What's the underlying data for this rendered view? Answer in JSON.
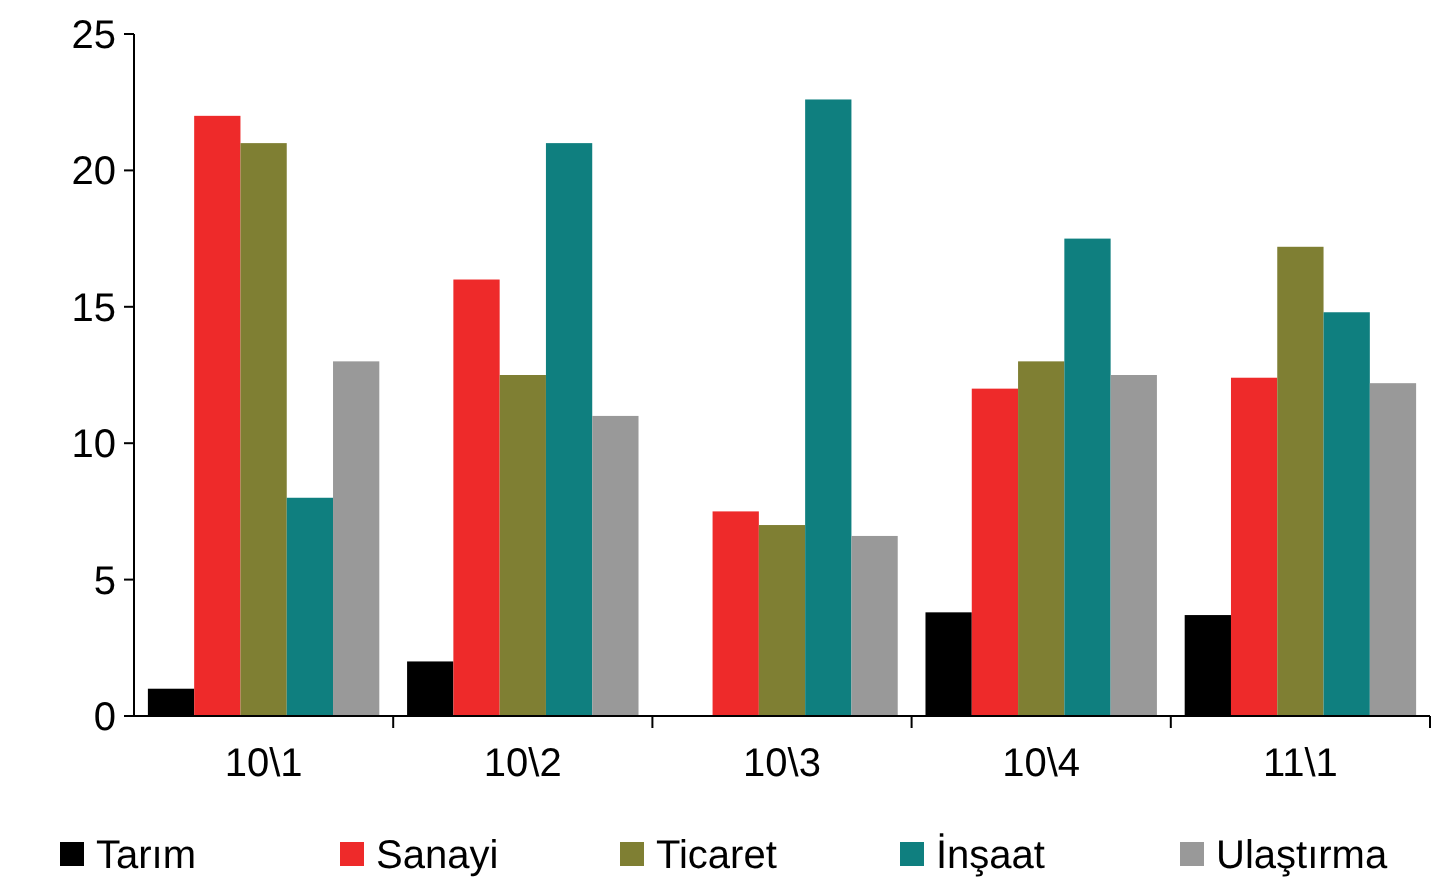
{
  "chart_data": {
    "type": "bar",
    "categories": [
      "10\\1",
      "10\\2",
      "10\\3",
      "10\\4",
      "11\\1"
    ],
    "series": [
      {
        "name": "Tarım",
        "color": "#000000",
        "values": [
          1,
          2,
          0,
          3.8,
          3.7
        ]
      },
      {
        "name": "Sanayi",
        "color": "#ee2a2a",
        "values": [
          22,
          16,
          7.5,
          12,
          12.4
        ]
      },
      {
        "name": "Ticaret",
        "color": "#7f7f33",
        "values": [
          21,
          12.5,
          7,
          13,
          17.2
        ]
      },
      {
        "name": "İnşaat",
        "color": "#0f7f7f",
        "values": [
          8,
          21,
          22.6,
          17.5,
          14.8
        ]
      },
      {
        "name": "Ulaştırma",
        "color": "#999999",
        "values": [
          13,
          11,
          6.6,
          12.5,
          12.2
        ]
      }
    ],
    "ylim": [
      0,
      25
    ],
    "yticks": [
      0,
      5,
      10,
      15,
      20,
      25
    ],
    "grid": false,
    "legend": "bottom"
  }
}
